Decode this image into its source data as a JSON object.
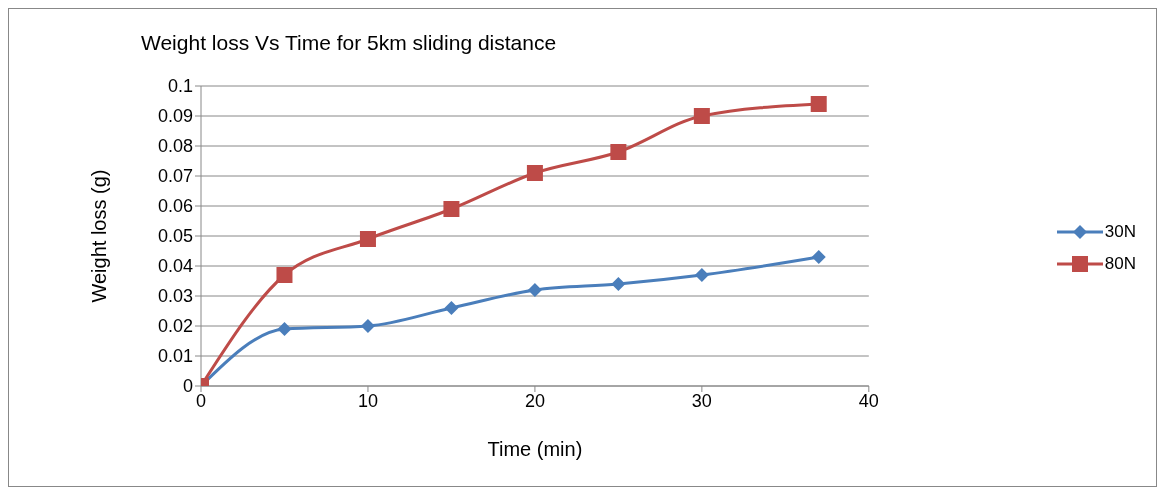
{
  "chart_data": {
    "type": "line",
    "title": "Weight loss Vs Time for 5km sliding distance",
    "xlabel": "Time (min)",
    "ylabel": "Weight loss (g)",
    "x": [
      0,
      5,
      10,
      15,
      20,
      25,
      30,
      37
    ],
    "series": [
      {
        "name": "30N",
        "color": "#4a7ebb",
        "marker": "diamond",
        "values": [
          0,
          0.019,
          0.02,
          0.026,
          0.032,
          0.034,
          0.037,
          0.043
        ]
      },
      {
        "name": "80N",
        "color": "#be4b48",
        "marker": "square",
        "values": [
          0,
          0.037,
          0.049,
          0.059,
          0.071,
          0.078,
          0.09,
          0.094
        ]
      }
    ],
    "xlim": [
      0,
      40
    ],
    "xticks": [
      0,
      10,
      20,
      30,
      40
    ],
    "ylim": [
      0,
      0.1
    ],
    "yticks": [
      0,
      0.01,
      0.02,
      0.03,
      0.04,
      0.05,
      0.06,
      0.07,
      0.08,
      0.09,
      0.1
    ],
    "grid": "y",
    "legend": "right",
    "line_style": "solid"
  }
}
